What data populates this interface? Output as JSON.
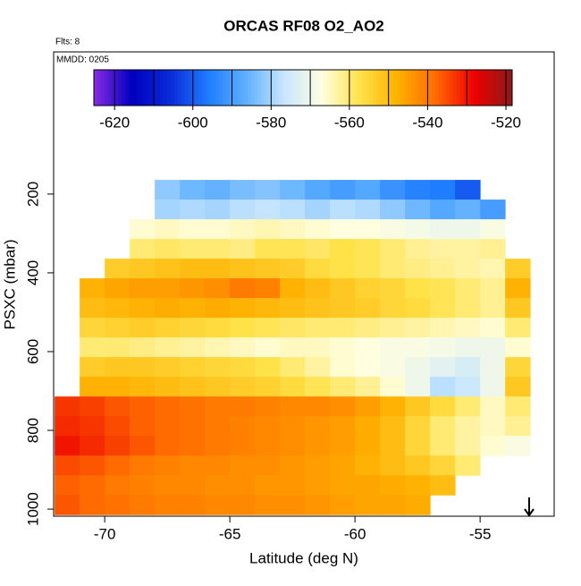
{
  "chart_data": {
    "type": "heatmap",
    "title": "ORCAS RF08 O2_AO2",
    "annotations": [
      "Flts: 8",
      "MMDD: 0205"
    ],
    "x_label": "Latitude (deg N)",
    "y_label": "PSXC (mbar)",
    "xlim": [
      -72.04,
      -52.04
    ],
    "xticks": [
      -70,
      -65,
      -60,
      -55
    ],
    "ylim": [
      1018,
      -161
    ],
    "yticks": [
      200,
      400,
      600,
      800,
      1000
    ],
    "x_edges": [
      -72,
      -71,
      -70,
      -69,
      -68,
      -67,
      -66,
      -65,
      -64,
      -63,
      -62,
      -61,
      -60,
      -59,
      -58,
      -57,
      -56,
      -55,
      -54,
      -53,
      -52
    ],
    "y_edges": [
      164,
      214,
      264,
      314,
      364,
      414,
      464,
      514,
      564,
      614,
      664,
      714,
      764,
      814,
      864,
      914,
      964,
      1014
    ],
    "z": [
      [
        null,
        null,
        null,
        null,
        -582,
        -585,
        -586,
        -584,
        -583,
        -585,
        -588,
        -590,
        -588,
        -592,
        -595,
        -596,
        -600,
        null,
        null,
        null
      ],
      [
        null,
        null,
        null,
        null,
        -580,
        -579,
        -580,
        -578,
        -577,
        -578,
        -580,
        -578,
        -579,
        -582,
        -585,
        -588,
        -586,
        -590,
        null,
        null
      ],
      [
        null,
        null,
        null,
        -566,
        -565,
        -566,
        -566,
        -565,
        -564,
        -565,
        -566,
        -567,
        -567,
        -568,
        -569,
        -570,
        -570,
        -568,
        null,
        null
      ],
      [
        null,
        null,
        null,
        -560,
        -559,
        -560,
        -560,
        -561,
        -558,
        -558,
        -559,
        -557,
        -558,
        -560,
        -562,
        -563,
        -563,
        -562,
        null,
        null
      ],
      [
        null,
        null,
        -553,
        -552,
        -551,
        -550,
        -550,
        -551,
        -552,
        -553,
        -556,
        -557,
        -558,
        -560,
        -561,
        -562,
        -563,
        -564,
        -553,
        null
      ],
      [
        null,
        -548,
        -546,
        -545,
        -545,
        -544,
        -543,
        -540,
        -541,
        -548,
        -550,
        -552,
        -554,
        -555,
        -557,
        -558,
        -560,
        -562,
        -548,
        null
      ],
      [
        null,
        -550,
        -549,
        -548,
        -547,
        -548,
        -547,
        -548,
        -549,
        -550,
        -551,
        -552,
        -553,
        -555,
        -556,
        -558,
        -560,
        -562,
        -552,
        null
      ],
      [
        null,
        -555,
        -554,
        -553,
        -554,
        -555,
        -556,
        -557,
        -558,
        -559,
        -560,
        -560,
        -561,
        -562,
        -563,
        -564,
        -565,
        -566,
        -560,
        null
      ],
      [
        null,
        -560,
        -560,
        -561,
        -562,
        -563,
        -564,
        -565,
        -566,
        -565,
        -565,
        -566,
        -567,
        -568,
        -568,
        -569,
        -570,
        -570,
        -566,
        null
      ],
      [
        null,
        -553,
        -552,
        -552,
        -553,
        -554,
        -555,
        -556,
        -557,
        -560,
        -563,
        -566,
        -567,
        -568,
        -570,
        -572,
        -574,
        -570,
        -555,
        null
      ],
      [
        null,
        -548,
        -548,
        -549,
        -550,
        -551,
        -552,
        -553,
        -554,
        -556,
        -558,
        -560,
        -562,
        -566,
        -570,
        -578,
        -576,
        -570,
        -552,
        null
      ],
      [
        -533,
        -534,
        -536,
        -537,
        -538,
        -539,
        -540,
        -540,
        -541,
        -542,
        -542,
        -543,
        -545,
        -548,
        -552,
        -556,
        -560,
        -565,
        -560,
        null
      ],
      [
        -532,
        -533,
        -535,
        -537,
        -538,
        -539,
        -540,
        -541,
        -542,
        -543,
        -544,
        -545,
        -547,
        -550,
        -555,
        -560,
        -563,
        -565,
        -562,
        null
      ],
      [
        -530,
        -532,
        -534,
        -536,
        -538,
        -539,
        -540,
        -541,
        -542,
        -543,
        -544,
        -545,
        -547,
        -550,
        -555,
        -560,
        -563,
        -566,
        -568,
        null
      ],
      [
        -535,
        -536,
        -538,
        -540,
        -541,
        -542,
        -542,
        -543,
        -543,
        -544,
        -545,
        -546,
        -548,
        -550,
        -552,
        -555,
        -560,
        null,
        null,
        null
      ],
      [
        -537,
        -538,
        -540,
        -541,
        -542,
        -542,
        -543,
        -543,
        -544,
        -544,
        -545,
        -546,
        -546,
        -547,
        -548,
        -550,
        null,
        null,
        null,
        null
      ],
      [
        -536,
        -538,
        -539,
        -540,
        -541,
        -541,
        -542,
        -542,
        -543,
        -543,
        -544,
        -545,
        -546,
        -546,
        -547,
        null,
        null,
        null,
        null,
        null
      ]
    ],
    "zlim": [
      -625.3,
      -518.4
    ],
    "zticks": [
      -620,
      -600,
      -580,
      -560,
      -540,
      -520
    ],
    "zbreaks": [
      -620,
      -610,
      -600,
      -590,
      -580,
      -570,
      -560,
      -550,
      -540,
      -530,
      -520
    ],
    "colorscale": [
      "#8a2be2",
      "#0000c0",
      "#0a2ad8",
      "#1e7cff",
      "#5fb0ff",
      "#c8e6ff",
      "#ffffe0",
      "#ffe24a",
      "#ffb000",
      "#ff6a00",
      "#ee0000",
      "#8b1a1a"
    ]
  }
}
